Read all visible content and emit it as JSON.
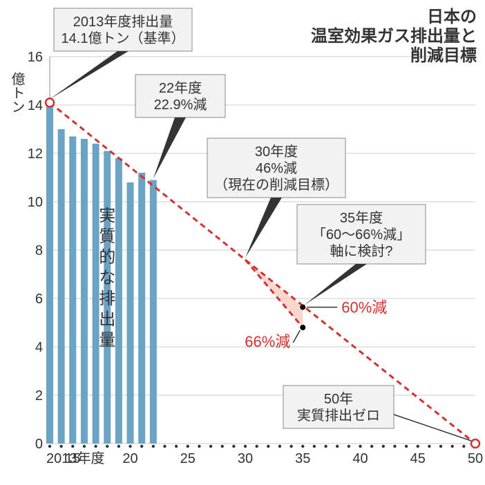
{
  "title": {
    "line1": "日本の",
    "line2": "温室効果ガス排出量と",
    "line3": "削減目標",
    "fontsize": 24,
    "color": "#333333"
  },
  "yaxis": {
    "label_top": "億トン",
    "ticks": [
      0,
      2,
      4,
      6,
      8,
      10,
      12,
      14,
      16
    ],
    "ylim": [
      0,
      16
    ],
    "fontsize": 20,
    "color": "#333333"
  },
  "xaxis": {
    "start_label": "2013年度",
    "ticks": [
      15,
      20,
      25,
      30,
      35,
      40,
      45,
      50
    ],
    "xlim": [
      2013,
      2050
    ],
    "fontsize": 20,
    "color": "#333333",
    "dot_years": [
      2013,
      2014,
      2015,
      2016,
      2017,
      2018,
      2019,
      2020,
      2021,
      2022,
      2023,
      2024,
      2025,
      2026,
      2027,
      2028,
      2029,
      2030,
      2031,
      2032,
      2033,
      2034,
      2035,
      2036,
      2037,
      2038,
      2039,
      2040,
      2041,
      2042,
      2043,
      2044,
      2045,
      2046,
      2047,
      2048,
      2049,
      2050
    ]
  },
  "bars": {
    "type": "bar",
    "color": "#6ba3c4",
    "years": [
      2013,
      2014,
      2015,
      2016,
      2017,
      2018,
      2019,
      2020,
      2021,
      2022
    ],
    "values": [
      14.1,
      13.0,
      12.7,
      12.6,
      12.4,
      12.1,
      11.8,
      10.8,
      11.2,
      10.9
    ],
    "bar_width": 0.6
  },
  "trend_line_main": {
    "type": "line",
    "color": "#d43030",
    "dash": "8,6",
    "width": 3,
    "points": [
      {
        "year": 2013,
        "value": 14.1
      },
      {
        "year": 2030,
        "value": 7.6
      },
      {
        "year": 2050,
        "value": 0
      }
    ],
    "start_marker": {
      "type": "open-circle",
      "year": 2013,
      "value": 14.1,
      "color": "#d43030"
    },
    "end_marker": {
      "type": "open-circle",
      "year": 2050,
      "value": 0,
      "color": "#d43030"
    }
  },
  "trend_line_alt": {
    "type": "line",
    "color": "#d43030",
    "dash": "8,6",
    "width": 3,
    "points": [
      {
        "year": 2030,
        "value": 7.6
      },
      {
        "year": 2035,
        "value": 4.8
      }
    ]
  },
  "scenario_markers": {
    "p60": {
      "year": 2035,
      "value": 5.64,
      "color": "#000000"
    },
    "p66": {
      "year": 2035,
      "value": 4.8,
      "color": "#000000"
    }
  },
  "scenario_fill": {
    "color": "#f5c6b8",
    "opacity": 0.7
  },
  "vertical_label": "実質的な排出量",
  "annotations": {
    "a2013": {
      "line1": "2013年度排出量",
      "line2": "14.1億トン（基準）"
    },
    "a2022": {
      "line1": "22年度",
      "line2": "22.9%減"
    },
    "a2030": {
      "line1": "30年度",
      "line2": "46%減",
      "line3": "（現在の削減目標）"
    },
    "a2035": {
      "line1": "35年度",
      "line2": "「60～66%減」",
      "line3": "軸に検討?"
    },
    "a2050": {
      "line1": "50年",
      "line2": "実質排出ゼロ"
    },
    "label60": "60%減",
    "label66": "66%減"
  },
  "grid": {
    "color": "#cccccc",
    "width": 1
  },
  "background_color": "#ffffff"
}
